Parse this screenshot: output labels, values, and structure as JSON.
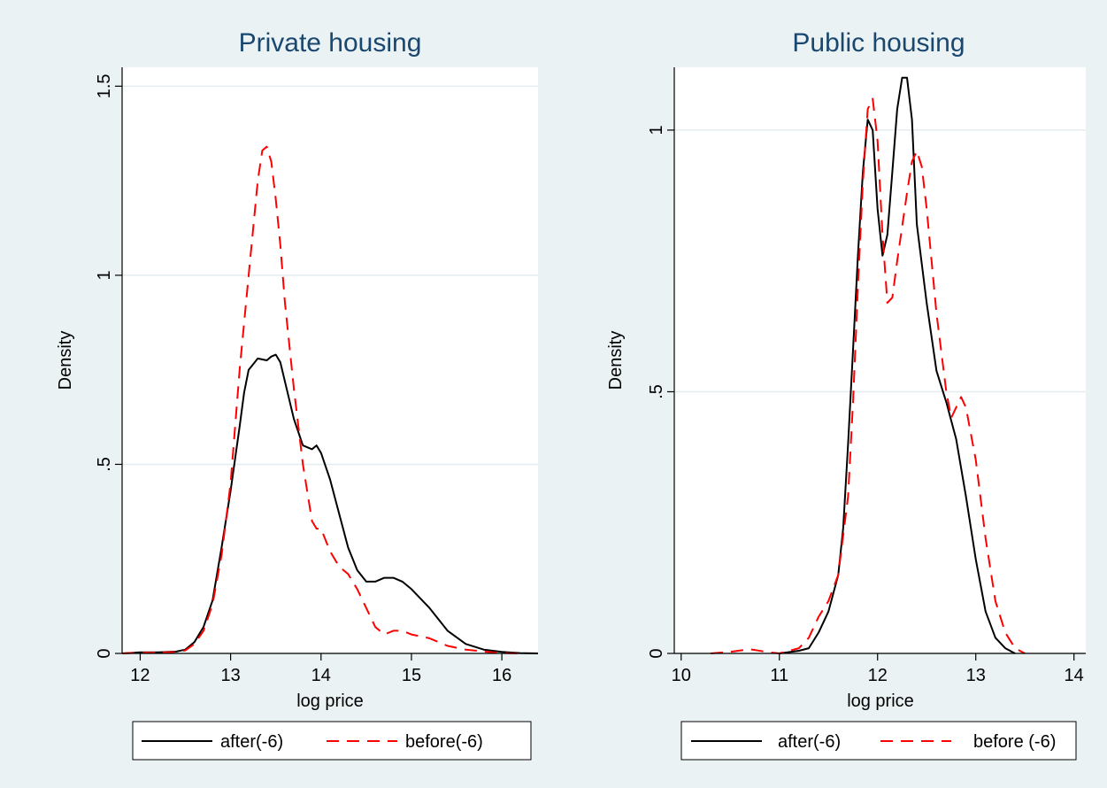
{
  "chart_data": [
    {
      "type": "line",
      "title": "Private housing",
      "xlabel": "log price",
      "ylabel": "Density",
      "xlim": [
        11.8,
        16.4
      ],
      "ylim": [
        0,
        1.55
      ],
      "xticks": [
        12,
        13,
        14,
        15,
        16
      ],
      "xtick_labels": [
        "12",
        "13",
        "14",
        "15",
        "16"
      ],
      "yticks": [
        0,
        0.5,
        1,
        1.5
      ],
      "ytick_labels": [
        "0",
        ".5",
        "1",
        "1.5"
      ],
      "grid": true,
      "legend": "bottom",
      "series": [
        {
          "name": "after(-6)",
          "color": "#000000",
          "dash": "solid",
          "x": [
            11.8,
            12.0,
            12.2,
            12.4,
            12.5,
            12.6,
            12.7,
            12.8,
            12.9,
            13.0,
            13.1,
            13.15,
            13.2,
            13.3,
            13.4,
            13.45,
            13.5,
            13.55,
            13.6,
            13.65,
            13.7,
            13.8,
            13.9,
            13.95,
            14.0,
            14.1,
            14.2,
            14.3,
            14.4,
            14.5,
            14.6,
            14.7,
            14.8,
            14.9,
            15.0,
            15.2,
            15.4,
            15.6,
            15.8,
            16.0,
            16.2,
            16.4
          ],
          "values": [
            0.0,
            0.003,
            0.003,
            0.005,
            0.01,
            0.03,
            0.07,
            0.14,
            0.28,
            0.43,
            0.6,
            0.69,
            0.75,
            0.78,
            0.775,
            0.785,
            0.79,
            0.77,
            0.72,
            0.67,
            0.62,
            0.55,
            0.54,
            0.55,
            0.53,
            0.46,
            0.37,
            0.28,
            0.22,
            0.19,
            0.19,
            0.2,
            0.2,
            0.19,
            0.17,
            0.12,
            0.06,
            0.025,
            0.01,
            0.004,
            0.001,
            0.0
          ]
        },
        {
          "name": "before(-6)",
          "color": "#ff0000",
          "dash": "dashed",
          "x": [
            11.8,
            12.0,
            12.2,
            12.4,
            12.5,
            12.6,
            12.7,
            12.8,
            12.9,
            13.0,
            13.1,
            13.2,
            13.3,
            13.35,
            13.4,
            13.45,
            13.5,
            13.55,
            13.6,
            13.7,
            13.8,
            13.9,
            13.95,
            14.0,
            14.1,
            14.2,
            14.3,
            14.4,
            14.5,
            14.6,
            14.7,
            14.8,
            14.9,
            15.0,
            15.2,
            15.4,
            15.6,
            15.8,
            16.0,
            16.2
          ],
          "values": [
            0.0,
            0.002,
            0.002,
            0.004,
            0.008,
            0.025,
            0.06,
            0.13,
            0.26,
            0.45,
            0.75,
            1.0,
            1.25,
            1.33,
            1.34,
            1.3,
            1.2,
            1.08,
            0.93,
            0.7,
            0.5,
            0.35,
            0.33,
            0.33,
            0.27,
            0.23,
            0.21,
            0.17,
            0.12,
            0.07,
            0.05,
            0.06,
            0.06,
            0.05,
            0.04,
            0.02,
            0.01,
            0.005,
            0.001,
            0.0
          ]
        }
      ]
    },
    {
      "type": "line",
      "title": "Public housing",
      "xlabel": "log price",
      "ylabel": "Density",
      "xlim": [
        9.93,
        14.12
      ],
      "ylim": [
        0,
        1.12
      ],
      "xticks": [
        10,
        11,
        12,
        13,
        14
      ],
      "xtick_labels": [
        "10",
        "11",
        "12",
        "13",
        "14"
      ],
      "yticks": [
        0,
        0.5,
        1
      ],
      "ytick_labels": [
        "0",
        ".5",
        "1"
      ],
      "grid": true,
      "legend": "bottom",
      "series": [
        {
          "name": "after(-6)",
          "color": "#000000",
          "dash": "solid",
          "x": [
            11.0,
            11.2,
            11.3,
            11.4,
            11.5,
            11.6,
            11.65,
            11.7,
            11.75,
            11.8,
            11.85,
            11.9,
            11.95,
            12.0,
            12.05,
            12.1,
            12.15,
            12.2,
            12.25,
            12.3,
            12.35,
            12.4,
            12.5,
            12.6,
            12.7,
            12.8,
            12.9,
            13.0,
            13.1,
            13.2,
            13.3,
            13.4
          ],
          "values": [
            0.0,
            0.005,
            0.01,
            0.04,
            0.08,
            0.15,
            0.24,
            0.4,
            0.58,
            0.76,
            0.92,
            1.02,
            1.0,
            0.85,
            0.76,
            0.8,
            0.92,
            1.04,
            1.1,
            1.1,
            1.02,
            0.82,
            0.67,
            0.54,
            0.48,
            0.41,
            0.3,
            0.18,
            0.08,
            0.03,
            0.01,
            0.0
          ]
        },
        {
          "name": "before (-6)",
          "color": "#ff0000",
          "dash": "dashed",
          "x": [
            10.3,
            10.5,
            10.7,
            10.9,
            11.0,
            11.2,
            11.3,
            11.4,
            11.5,
            11.6,
            11.7,
            11.75,
            11.8,
            11.85,
            11.9,
            11.95,
            12.0,
            12.05,
            12.1,
            12.15,
            12.2,
            12.3,
            12.35,
            12.4,
            12.45,
            12.5,
            12.6,
            12.7,
            12.75,
            12.8,
            12.85,
            12.9,
            13.0,
            13.1,
            13.2,
            13.3,
            13.4,
            13.5
          ],
          "values": [
            0.0,
            0.003,
            0.008,
            0.002,
            0.0,
            0.01,
            0.03,
            0.07,
            0.1,
            0.15,
            0.3,
            0.48,
            0.7,
            0.9,
            1.04,
            1.06,
            0.98,
            0.8,
            0.67,
            0.68,
            0.75,
            0.88,
            0.94,
            0.96,
            0.93,
            0.85,
            0.65,
            0.5,
            0.45,
            0.47,
            0.49,
            0.47,
            0.37,
            0.22,
            0.1,
            0.04,
            0.01,
            0.0
          ]
        }
      ]
    }
  ]
}
